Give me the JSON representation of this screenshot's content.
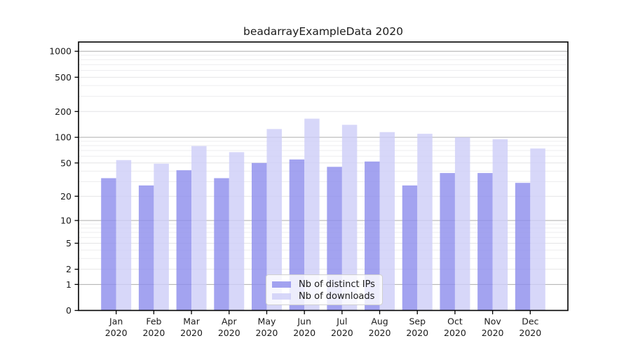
{
  "figure": {
    "title": "beadarrayExampleData 2020",
    "background": "#ffffff"
  },
  "chart_data": {
    "type": "bar",
    "title": "beadarrayExampleData 2020",
    "categories": [
      "Jan",
      "Feb",
      "Mar",
      "Apr",
      "May",
      "Jun",
      "Jul",
      "Aug",
      "Sep",
      "Oct",
      "Nov",
      "Dec"
    ],
    "x_year_label": "2020",
    "series": [
      {
        "name": "Nb of distinct IPs",
        "color": "#8c8cec",
        "values": [
          33,
          27,
          41,
          33,
          50,
          55,
          45,
          52,
          27,
          38,
          38,
          29
        ]
      },
      {
        "name": "Nb of downloads",
        "color": "#cdcdf7",
        "values": [
          54,
          49,
          79,
          67,
          125,
          165,
          140,
          115,
          110,
          100,
          95,
          74
        ]
      }
    ],
    "y_axis": {
      "scale": "log10(1+x)",
      "ticks": [
        0,
        1,
        2,
        5,
        10,
        20,
        50,
        100,
        200,
        500,
        1000
      ],
      "range": [
        0,
        1000
      ]
    },
    "xlabel": "",
    "ylabel": "",
    "grid": "on",
    "legend_position": "inside-bottom-center"
  },
  "colors": {
    "axis": "#000000",
    "grid_decade": "#aeaeae",
    "grid_labeled": "#e4e4e6",
    "grid_minor": "#ededef",
    "tick_label": "#1a1a1a",
    "legend_border": "#d0d0d0"
  }
}
